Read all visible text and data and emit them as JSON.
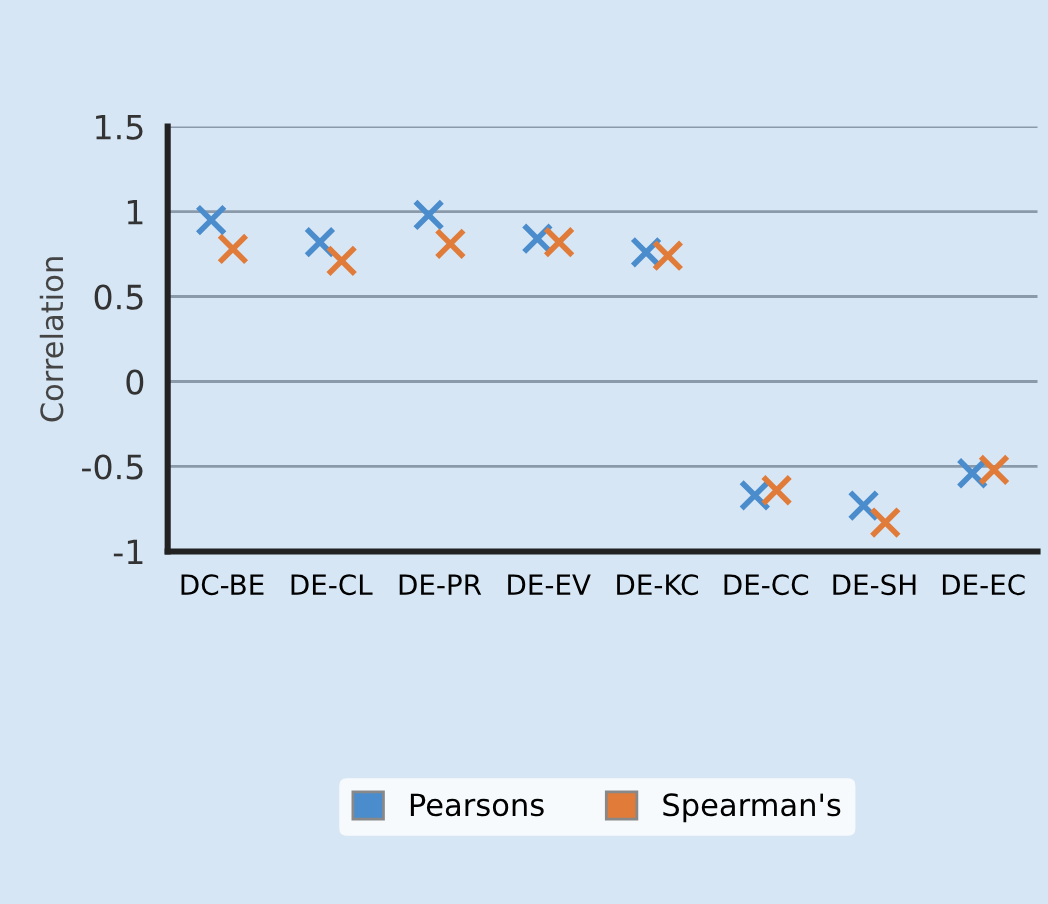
{
  "chart_data": {
    "type": "scatter",
    "ylabel": "Correlation",
    "categories": [
      "DC-BE",
      "DE-CL",
      "DE-PR",
      "DE-EV",
      "DE-KC",
      "DE-CC",
      "DE-SH",
      "DE-EC"
    ],
    "series": [
      {
        "name": "Pearsons",
        "color": "#4a8ccc",
        "values": [
          0.95,
          0.82,
          0.98,
          0.84,
          0.76,
          -0.67,
          -0.73,
          -0.54
        ]
      },
      {
        "name": "Spearman's",
        "color": "#e07b39",
        "values": [
          0.78,
          0.71,
          0.81,
          0.82,
          0.74,
          -0.64,
          -0.83,
          -0.52
        ]
      }
    ],
    "ylim": [
      -1,
      1.5
    ],
    "yticks": [
      -1,
      -0.5,
      0,
      0.5,
      1,
      1.5
    ],
    "grid": "y",
    "legend": "bottom",
    "marker": "cross"
  }
}
